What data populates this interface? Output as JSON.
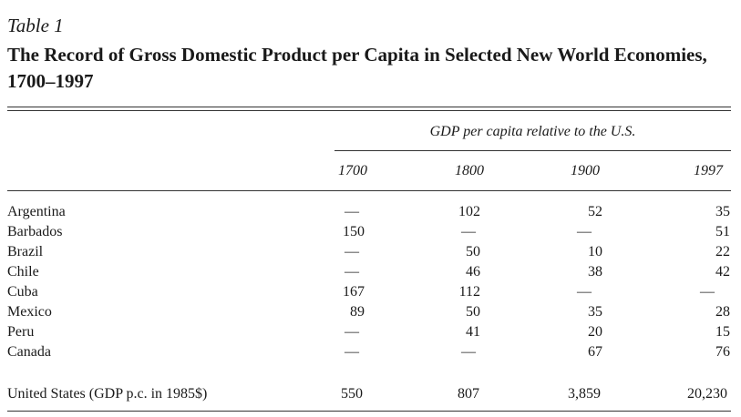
{
  "table_label": "Table 1",
  "title": "The Record of Gross Domestic Product per Capita in Selected New World Economies, 1700–1997",
  "spanner": "GDP per capita relative to the U.S.",
  "columns": [
    "1700",
    "1800",
    "1900",
    "1997"
  ],
  "rows": [
    {
      "name": "Argentina",
      "values": [
        "—",
        "102",
        "52",
        "35"
      ]
    },
    {
      "name": "Barbados",
      "values": [
        "150",
        "—",
        "—",
        "51"
      ]
    },
    {
      "name": "Brazil",
      "values": [
        "—",
        "50",
        "10",
        "22"
      ]
    },
    {
      "name": "Chile",
      "values": [
        "—",
        "46",
        "38",
        "42"
      ]
    },
    {
      "name": "Cuba",
      "values": [
        "167",
        "112",
        "—",
        "—"
      ]
    },
    {
      "name": "Mexico",
      "values": [
        "89",
        "50",
        "35",
        "28"
      ]
    },
    {
      "name": "Peru",
      "values": [
        "—",
        "41",
        "20",
        "15"
      ]
    },
    {
      "name": "Canada",
      "values": [
        "—",
        "—",
        "67",
        "76"
      ]
    }
  ],
  "footer_row": {
    "name": "United States (GDP p.c. in 1985$)",
    "values": [
      "550",
      "807",
      "3,859",
      "20,230"
    ]
  }
}
